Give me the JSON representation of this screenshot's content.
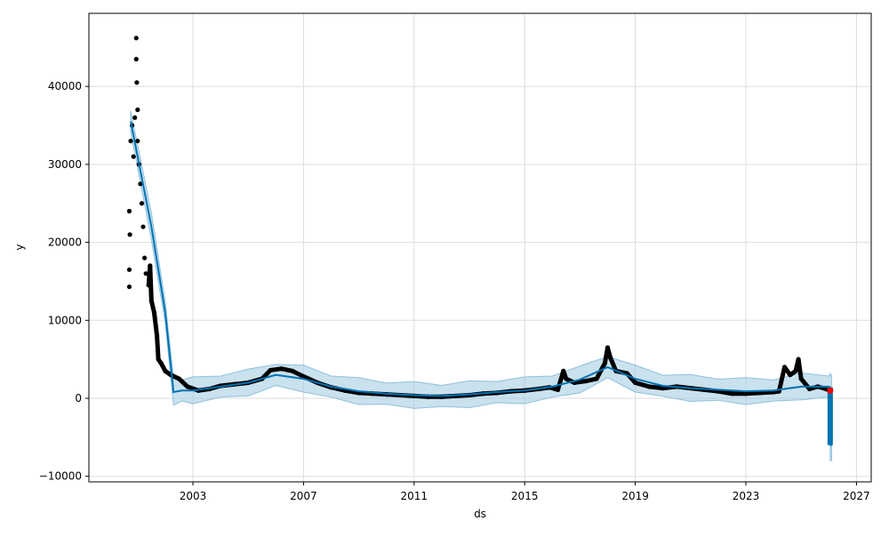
{
  "chart_data": {
    "type": "line",
    "title": "",
    "xlabel": "ds",
    "ylabel": "y",
    "xlim": [
      1999.25,
      2027.5
    ],
    "ylim": [
      -10700,
      49000
    ],
    "grid": true,
    "x_ticks": [
      2003,
      2007,
      2011,
      2015,
      2019,
      2023,
      2027
    ],
    "y_ticks": [
      -10000,
      0,
      10000,
      20000,
      30000,
      40000
    ],
    "y_tick_labels": [
      "−10000",
      "0",
      "10000",
      "20000",
      "30000",
      "40000"
    ],
    "colors": {
      "forecast": "#0072B2",
      "band": "#a6cde3",
      "observed": "#000000",
      "last_point": "#ff0000"
    },
    "forecast_yhat": [
      [
        2000.75,
        35500
      ],
      [
        2001.5,
        22000
      ],
      [
        2002.0,
        11000
      ],
      [
        2002.3,
        800
      ],
      [
        2002.6,
        1000
      ],
      [
        2003,
        1000
      ],
      [
        2004,
        1500
      ],
      [
        2005,
        2000
      ],
      [
        2006,
        3000
      ],
      [
        2007,
        2500
      ],
      [
        2008,
        1500
      ],
      [
        2009,
        900
      ],
      [
        2010,
        600
      ],
      [
        2011,
        400
      ],
      [
        2012,
        300
      ],
      [
        2013,
        500
      ],
      [
        2014,
        800
      ],
      [
        2015,
        1000
      ],
      [
        2016,
        1500
      ],
      [
        2017,
        2400
      ],
      [
        2018,
        4000
      ],
      [
        2019,
        2500
      ],
      [
        2020,
        1600
      ],
      [
        2021,
        1300
      ],
      [
        2022,
        1100
      ],
      [
        2023,
        900
      ],
      [
        2024,
        1000
      ],
      [
        2025,
        1500
      ],
      [
        2026.0,
        1500
      ],
      [
        2026.05,
        1400
      ],
      [
        2026.08,
        -6000
      ],
      [
        2026.1,
        -6000
      ]
    ],
    "uncertainty_halfwidth": 1500,
    "forecast_final_band": [
      -8000,
      3000
    ],
    "observed": [
      [
        2000.7,
        24000
      ],
      [
        2000.72,
        21000
      ],
      [
        2000.7,
        16500
      ],
      [
        2000.7,
        14300
      ],
      [
        2000.75,
        33000
      ],
      [
        2000.8,
        35000
      ],
      [
        2000.85,
        31000
      ],
      [
        2000.9,
        36000
      ],
      [
        2000.95,
        46200
      ],
      [
        2000.95,
        43500
      ],
      [
        2000.97,
        40500
      ],
      [
        2001.0,
        37000
      ],
      [
        2001.0,
        33000
      ],
      [
        2001.05,
        30000
      ],
      [
        2001.1,
        27500
      ],
      [
        2001.15,
        25000
      ],
      [
        2001.2,
        22000
      ],
      [
        2001.25,
        18000
      ],
      [
        2001.3,
        16000
      ],
      [
        2001.4,
        14500
      ],
      [
        2001.45,
        17000
      ],
      [
        2001.5,
        12500
      ],
      [
        2001.6,
        11000
      ],
      [
        2001.7,
        8000
      ],
      [
        2001.75,
        5000
      ],
      [
        2001.85,
        4500
      ],
      [
        2002.0,
        3500
      ],
      [
        2002.2,
        3000
      ],
      [
        2002.5,
        2500
      ],
      [
        2002.8,
        1500
      ],
      [
        2003.2,
        1000
      ],
      [
        2003.6,
        1200
      ],
      [
        2004.0,
        1600
      ],
      [
        2004.5,
        1800
      ],
      [
        2005.0,
        2000
      ],
      [
        2005.5,
        2500
      ],
      [
        2005.8,
        3600
      ],
      [
        2006.2,
        3800
      ],
      [
        2006.6,
        3500
      ],
      [
        2007.0,
        2800
      ],
      [
        2007.5,
        2000
      ],
      [
        2008,
        1400
      ],
      [
        2008.5,
        1000
      ],
      [
        2009,
        700
      ],
      [
        2009.5,
        600
      ],
      [
        2010,
        500
      ],
      [
        2010.5,
        400
      ],
      [
        2011,
        300
      ],
      [
        2011.5,
        200
      ],
      [
        2012,
        200
      ],
      [
        2012.5,
        300
      ],
      [
        2013,
        400
      ],
      [
        2013.5,
        600
      ],
      [
        2014,
        700
      ],
      [
        2014.5,
        900
      ],
      [
        2015,
        1000
      ],
      [
        2015.5,
        1200
      ],
      [
        2015.9,
        1400
      ],
      [
        2016.2,
        1100
      ],
      [
        2016.4,
        3500
      ],
      [
        2016.5,
        2500
      ],
      [
        2016.8,
        2000
      ],
      [
        2017.2,
        2200
      ],
      [
        2017.6,
        2500
      ],
      [
        2017.9,
        4500
      ],
      [
        2018.0,
        6500
      ],
      [
        2018.1,
        5200
      ],
      [
        2018.3,
        3500
      ],
      [
        2018.7,
        3200
      ],
      [
        2019,
        2000
      ],
      [
        2019.5,
        1500
      ],
      [
        2020,
        1300
      ],
      [
        2020.5,
        1500
      ],
      [
        2021,
        1300
      ],
      [
        2021.5,
        1100
      ],
      [
        2022,
        900
      ],
      [
        2022.5,
        600
      ],
      [
        2023,
        600
      ],
      [
        2023.5,
        700
      ],
      [
        2024,
        800
      ],
      [
        2024.2,
        900
      ],
      [
        2024.4,
        4000
      ],
      [
        2024.6,
        3000
      ],
      [
        2024.8,
        3500
      ],
      [
        2024.9,
        5000
      ],
      [
        2025.0,
        2500
      ],
      [
        2025.3,
        1200
      ],
      [
        2025.6,
        1500
      ],
      [
        2025.9,
        1200
      ],
      [
        2026.05,
        1000
      ]
    ],
    "last_point": [
      2026.05,
      1000
    ]
  }
}
